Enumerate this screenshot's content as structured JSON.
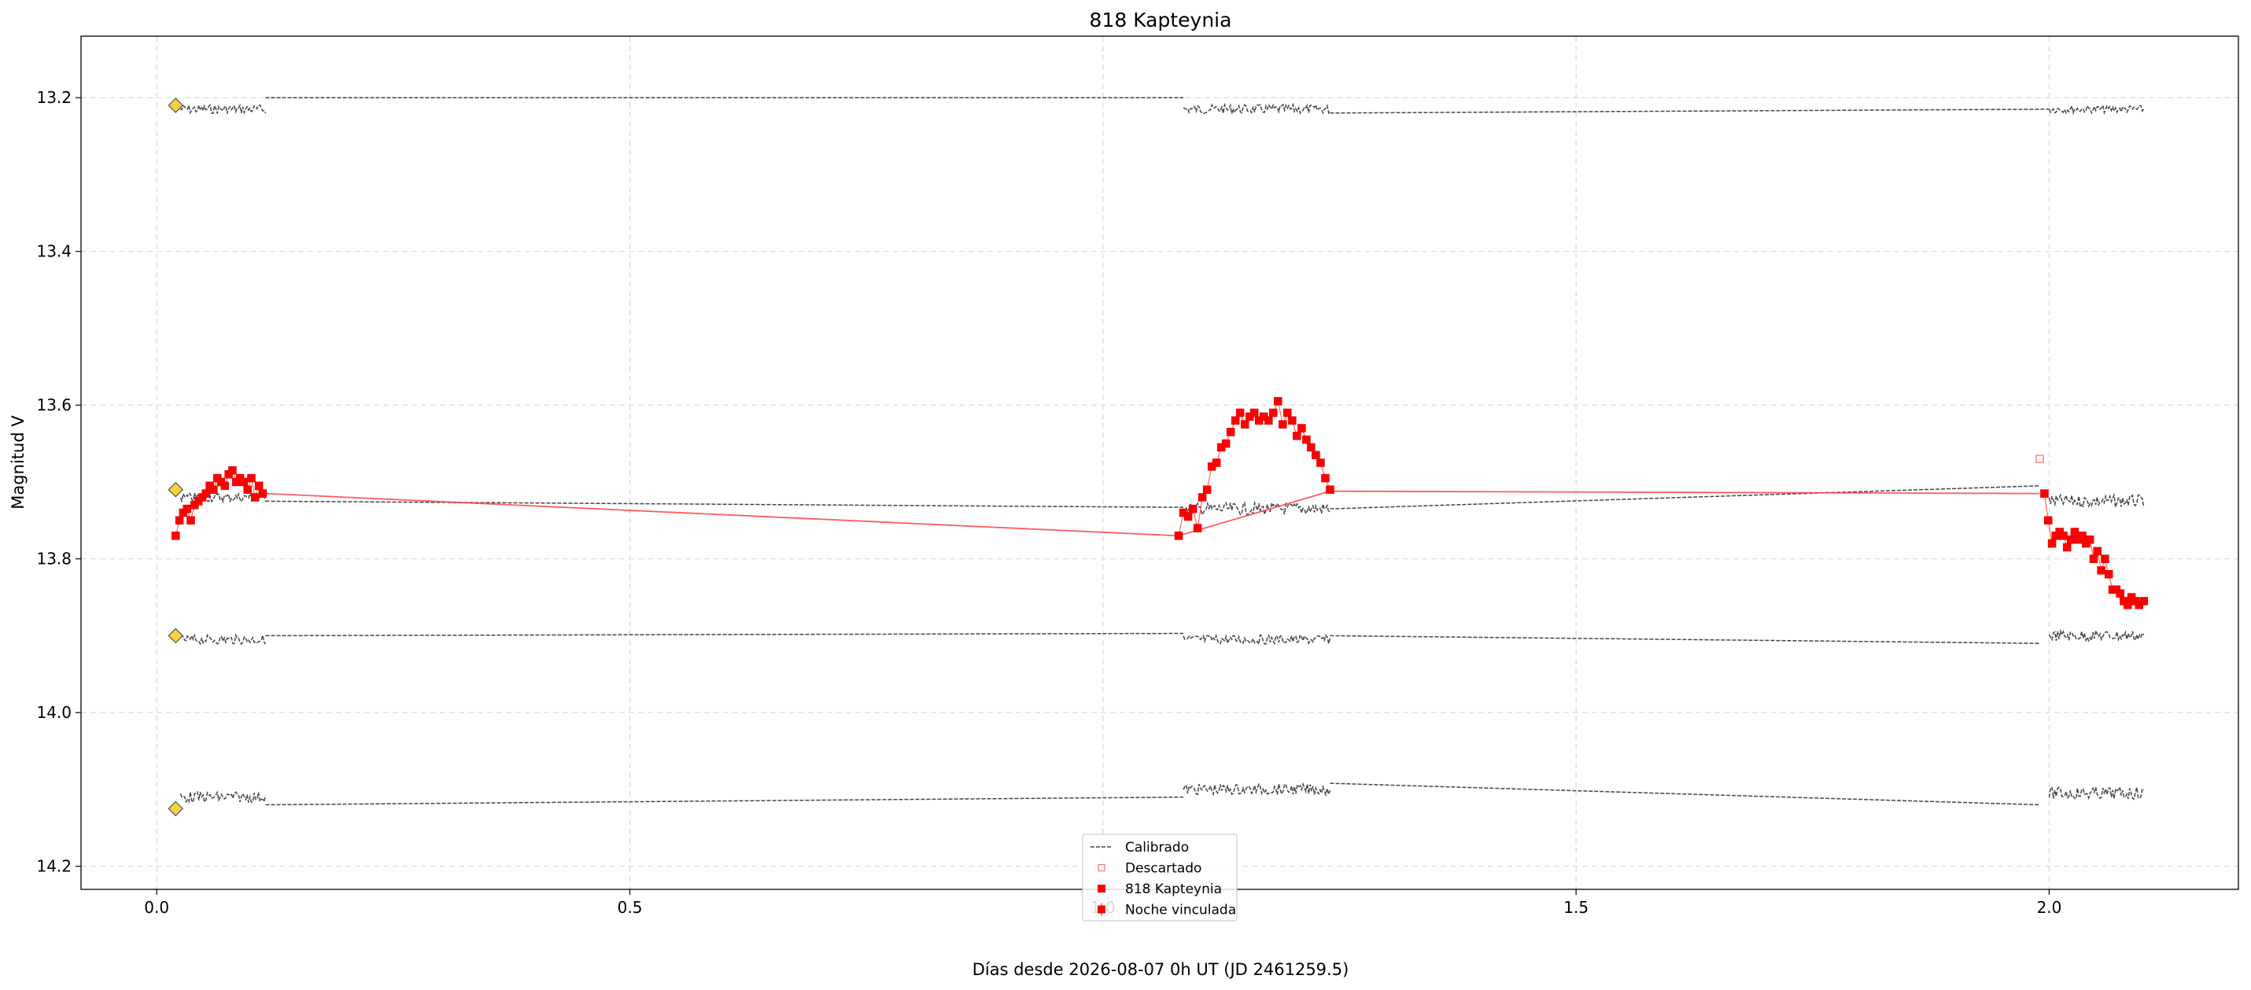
{
  "chart_data": {
    "type": "scatter",
    "title": "818 Kapteynia",
    "xlabel": "Días desde 2026-08-07 0h UT (JD 2461259.5)",
    "ylabel": "Magnitud V",
    "xlim": [
      -0.08,
      2.2
    ],
    "ylim": [
      14.23,
      13.12
    ],
    "y_inverted": true,
    "grid": true,
    "legend_placement": "lower-center",
    "x_ticks": [
      0.0,
      0.5,
      1.0,
      1.5,
      2.0
    ],
    "x_tick_labels": [
      "0.0",
      "0.5",
      "1.0",
      "1.5",
      "2.0"
    ],
    "y_ticks": [
      13.2,
      13.4,
      13.6,
      13.8,
      14.0,
      14.2
    ],
    "y_tick_labels": [
      "13.2",
      "13.4",
      "13.6",
      "13.8",
      "14.0",
      "14.2"
    ],
    "legend": [
      {
        "label": "Calibrado",
        "marker": "dashed-line",
        "color": "#444444"
      },
      {
        "label": "Descartado",
        "marker": "open-square",
        "color": "#f08080"
      },
      {
        "label": "818 Kapteynia",
        "marker": "filled-square",
        "color": "#ff0000"
      },
      {
        "label": "Noche vinculada",
        "marker": "filled-square-errorbar",
        "color": "#ff0000"
      }
    ],
    "colors": {
      "target": "#ff0000",
      "link_line": "#ff4040",
      "comparison": "#444444",
      "discarded": "#f08080",
      "comparison_marker": "#f5d142",
      "grid": "#d9d9d9"
    },
    "comparison_stars": [
      {
        "marker_x": 0.02,
        "marker_y": 13.21,
        "segments": [
          {
            "x0": 0.025,
            "x1": 0.115,
            "base": 13.215,
            "amp": 0.006
          },
          {
            "x0": 1.085,
            "x1": 1.24,
            "base": 13.215,
            "amp": 0.006
          },
          {
            "x0": 2.0,
            "x1": 2.1,
            "base": 13.215,
            "amp": 0.005
          }
        ],
        "links": [
          [
            0.115,
            13.2,
            1.085,
            13.2
          ],
          [
            1.24,
            13.22,
            2.0,
            13.215
          ]
        ]
      },
      {
        "marker_x": 0.02,
        "marker_y": 13.71,
        "segments": [
          {
            "x0": 0.025,
            "x1": 0.115,
            "base": 13.72,
            "amp": 0.006
          },
          {
            "x0": 1.085,
            "x1": 1.24,
            "base": 13.735,
            "amp": 0.008
          },
          {
            "x0": 2.0,
            "x1": 2.1,
            "base": 13.725,
            "amp": 0.008
          }
        ],
        "links": [
          [
            0.115,
            13.725,
            1.085,
            13.733
          ],
          [
            1.24,
            13.735,
            1.99,
            13.705
          ]
        ]
      },
      {
        "marker_x": 0.02,
        "marker_y": 13.9,
        "segments": [
          {
            "x0": 0.025,
            "x1": 0.115,
            "base": 13.905,
            "amp": 0.006
          },
          {
            "x0": 1.085,
            "x1": 1.24,
            "base": 13.905,
            "amp": 0.006
          },
          {
            "x0": 2.0,
            "x1": 2.1,
            "base": 13.9,
            "amp": 0.007
          }
        ],
        "links": [
          [
            0.115,
            13.9,
            1.085,
            13.897
          ],
          [
            1.24,
            13.9,
            1.99,
            13.91
          ]
        ]
      },
      {
        "marker_x": 0.02,
        "marker_y": 14.125,
        "segments": [
          {
            "x0": 0.025,
            "x1": 0.115,
            "base": 14.11,
            "amp": 0.007
          },
          {
            "x0": 1.085,
            "x1": 1.24,
            "base": 14.1,
            "amp": 0.007
          },
          {
            "x0": 2.0,
            "x1": 2.1,
            "base": 14.105,
            "amp": 0.008
          }
        ],
        "links": [
          [
            0.115,
            14.12,
            1.085,
            14.11
          ],
          [
            1.24,
            14.092,
            1.99,
            14.12
          ]
        ]
      }
    ],
    "series": [
      {
        "name": "818 Kapteynia",
        "nights": [
          {
            "x": [
              0.02,
              0.024,
              0.028,
              0.032,
              0.036,
              0.04,
              0.044,
              0.048,
              0.052,
              0.056,
              0.06,
              0.064,
              0.068,
              0.072,
              0.076,
              0.08,
              0.084,
              0.088,
              0.092,
              0.096,
              0.1,
              0.104,
              0.108,
              0.112
            ],
            "y": [
              13.77,
              13.75,
              13.74,
              13.735,
              13.75,
              13.73,
              13.725,
              13.72,
              13.715,
              13.705,
              13.71,
              13.695,
              13.7,
              13.705,
              13.69,
              13.685,
              13.7,
              13.695,
              13.7,
              13.71,
              13.695,
              13.72,
              13.705,
              13.715
            ]
          },
          {
            "x": [
              1.08,
              1.085,
              1.09,
              1.095,
              1.1,
              1.105,
              1.11,
              1.115,
              1.12,
              1.125,
              1.13,
              1.135,
              1.14,
              1.145,
              1.15,
              1.155,
              1.16,
              1.165,
              1.17,
              1.175,
              1.18,
              1.185,
              1.19,
              1.195,
              1.2,
              1.205,
              1.21,
              1.215,
              1.22,
              1.225,
              1.23,
              1.235,
              1.24
            ],
            "y": [
              13.77,
              13.74,
              13.745,
              13.735,
              13.76,
              13.72,
              13.71,
              13.68,
              13.675,
              13.655,
              13.65,
              13.635,
              13.62,
              13.61,
              13.625,
              13.615,
              13.61,
              13.62,
              13.615,
              13.62,
              13.61,
              13.595,
              13.625,
              13.61,
              13.62,
              13.64,
              13.63,
              13.645,
              13.655,
              13.665,
              13.675,
              13.695,
              13.71
            ]
          },
          {
            "x": [
              1.995,
              1.999,
              2.003,
              2.007,
              2.011,
              2.015,
              2.019,
              2.023,
              2.027,
              2.031,
              2.035,
              2.039,
              2.043,
              2.047,
              2.051,
              2.055,
              2.059,
              2.063,
              2.067,
              2.071,
              2.075,
              2.079,
              2.083,
              2.087,
              2.091,
              2.095,
              2.1
            ],
            "y": [
              13.715,
              13.75,
              13.78,
              13.77,
              13.765,
              13.77,
              13.785,
              13.775,
              13.765,
              13.775,
              13.77,
              13.78,
              13.775,
              13.8,
              13.79,
              13.815,
              13.8,
              13.82,
              13.84,
              13.84,
              13.845,
              13.855,
              13.86,
              13.85,
              13.855,
              13.86,
              13.855
            ]
          }
        ]
      },
      {
        "name": "Noche vinculada",
        "x": [
          0.115,
          1.08,
          1.24,
          1.99
        ],
        "y": [
          13.715,
          13.77,
          13.712,
          13.715
        ]
      },
      {
        "name": "Descartado",
        "x": [
          1.99
        ],
        "y": [
          13.67
        ]
      }
    ]
  }
}
